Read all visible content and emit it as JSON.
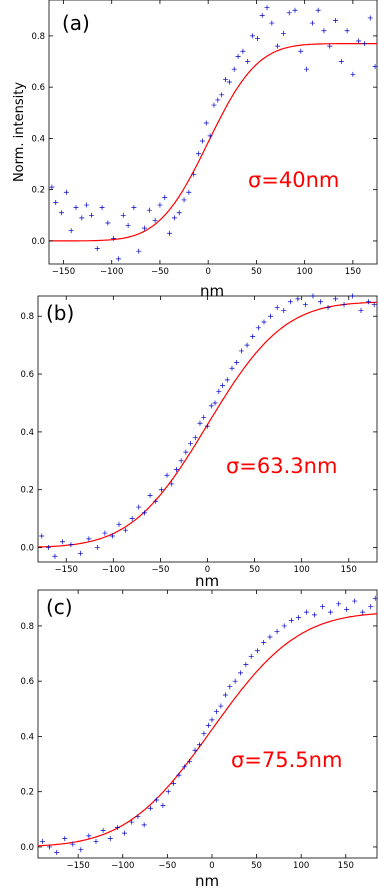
{
  "figure": {
    "curve_color": "#ff0000",
    "marker_color": "#0000cc",
    "marker": "+"
  },
  "chart_data": [
    {
      "type": "scatter",
      "panel_label": "(a)",
      "annotation": "σ=40nm",
      "xlabel": "nm",
      "ylabel": "Norm. intensity",
      "xlim": [
        -165,
        175
      ],
      "ylim": [
        -0.09,
        0.94
      ],
      "xticks": [
        -150,
        -100,
        -50,
        0,
        50,
        100,
        150
      ],
      "yticks": [
        0.0,
        0.2,
        0.4,
        0.6,
        0.8
      ],
      "ytick_labels": [
        "0.0",
        "0.2",
        "0.4",
        "0.6",
        "0.8"
      ],
      "fit": {
        "function": "erf",
        "sigma_nm": 40,
        "x0": 0,
        "baseline": 0.0,
        "plateau": 0.77
      },
      "points": [
        [
          -162,
          0.21
        ],
        [
          -158,
          0.15
        ],
        [
          -152,
          0.11
        ],
        [
          -147,
          0.19
        ],
        [
          -142,
          0.04
        ],
        [
          -137,
          0.13
        ],
        [
          -131,
          0.09
        ],
        [
          -126,
          0.14
        ],
        [
          -121,
          0.1
        ],
        [
          -115,
          -0.03
        ],
        [
          -110,
          0.13
        ],
        [
          -104,
          0.07
        ],
        [
          -98,
          0.01
        ],
        [
          -93,
          -0.07
        ],
        [
          -88,
          0.1
        ],
        [
          -83,
          0.06
        ],
        [
          -77,
          0.13
        ],
        [
          -72,
          -0.04
        ],
        [
          -66,
          0.05
        ],
        [
          -61,
          0.12
        ],
        [
          -55,
          0.08
        ],
        [
          -50,
          0.14
        ],
        [
          -45,
          0.17
        ],
        [
          -40,
          0.03
        ],
        [
          -35,
          0.09
        ],
        [
          -30,
          0.11
        ],
        [
          -25,
          0.16
        ],
        [
          -20,
          0.19
        ],
        [
          -15,
          0.26
        ],
        [
          -10,
          0.34
        ],
        [
          -6,
          0.39
        ],
        [
          -2,
          0.46
        ],
        [
          2,
          0.41
        ],
        [
          6,
          0.53
        ],
        [
          10,
          0.55
        ],
        [
          14,
          0.57
        ],
        [
          18,
          0.63
        ],
        [
          22,
          0.62
        ],
        [
          27,
          0.67
        ],
        [
          31,
          0.72
        ],
        [
          36,
          0.74
        ],
        [
          41,
          0.7
        ],
        [
          46,
          0.8
        ],
        [
          51,
          0.79
        ],
        [
          56,
          0.88
        ],
        [
          61,
          0.91
        ],
        [
          66,
          0.85
        ],
        [
          72,
          0.76
        ],
        [
          78,
          0.81
        ],
        [
          84,
          0.89
        ],
        [
          90,
          0.9
        ],
        [
          96,
          0.74
        ],
        [
          102,
          0.67
        ],
        [
          108,
          0.85
        ],
        [
          114,
          0.9
        ],
        [
          120,
          0.82
        ],
        [
          126,
          0.76
        ],
        [
          132,
          0.86
        ],
        [
          138,
          0.7
        ],
        [
          144,
          0.82
        ],
        [
          150,
          0.65
        ],
        [
          156,
          0.78
        ],
        [
          162,
          0.77
        ],
        [
          168,
          0.87
        ],
        [
          173,
          0.68
        ]
      ]
    },
    {
      "type": "scatter",
      "panel_label": "(b)",
      "annotation": "σ=63.3nm",
      "xlabel": "nm",
      "xlim": [
        -180,
        180
      ],
      "ylim": [
        -0.05,
        0.87
      ],
      "xticks": [
        -150,
        -100,
        -50,
        0,
        50,
        100,
        150
      ],
      "yticks": [
        0.0,
        0.2,
        0.4,
        0.6,
        0.8
      ],
      "ytick_labels": [
        "0.0",
        "0.2",
        "0.4",
        "0.6",
        "0.8"
      ],
      "fit": {
        "function": "erf",
        "sigma_nm": 63.3,
        "x0": 0,
        "baseline": 0.0,
        "plateau": 0.85
      },
      "points": [
        [
          -176,
          0.04
        ],
        [
          -169,
          0.0
        ],
        [
          -162,
          -0.03
        ],
        [
          -154,
          0.02
        ],
        [
          -145,
          0.01
        ],
        [
          -135,
          -0.02
        ],
        [
          -126,
          0.03
        ],
        [
          -117,
          0.0
        ],
        [
          -109,
          0.05
        ],
        [
          -101,
          0.04
        ],
        [
          -94,
          0.08
        ],
        [
          -87,
          0.06
        ],
        [
          -80,
          0.1
        ],
        [
          -73,
          0.14
        ],
        [
          -67,
          0.12
        ],
        [
          -61,
          0.18
        ],
        [
          -55,
          0.16
        ],
        [
          -49,
          0.2
        ],
        [
          -43,
          0.25
        ],
        [
          -38,
          0.22
        ],
        [
          -33,
          0.27
        ],
        [
          -28,
          0.3
        ],
        [
          -23,
          0.33
        ],
        [
          -18,
          0.36
        ],
        [
          -13,
          0.38
        ],
        [
          -8,
          0.43
        ],
        [
          -4,
          0.45
        ],
        [
          0,
          0.42
        ],
        [
          4,
          0.49
        ],
        [
          8,
          0.5
        ],
        [
          12,
          0.54
        ],
        [
          16,
          0.56
        ],
        [
          21,
          0.58
        ],
        [
          26,
          0.62
        ],
        [
          31,
          0.64
        ],
        [
          36,
          0.68
        ],
        [
          42,
          0.7
        ],
        [
          48,
          0.73
        ],
        [
          54,
          0.76
        ],
        [
          60,
          0.78
        ],
        [
          67,
          0.8
        ],
        [
          74,
          0.83
        ],
        [
          81,
          0.82
        ],
        [
          88,
          0.85
        ],
        [
          96,
          0.86
        ],
        [
          104,
          0.84
        ],
        [
          112,
          0.87
        ],
        [
          120,
          0.85
        ],
        [
          128,
          0.83
        ],
        [
          136,
          0.86
        ],
        [
          145,
          0.84
        ],
        [
          154,
          0.87
        ],
        [
          163,
          0.82
        ],
        [
          171,
          0.85
        ],
        [
          177,
          0.84
        ]
      ]
    },
    {
      "type": "scatter",
      "panel_label": "(c)",
      "annotation": "σ=75.5nm",
      "xlabel": "nm",
      "xlim": [
        -195,
        185
      ],
      "ylim": [
        -0.04,
        0.93
      ],
      "xticks": [
        -150,
        -100,
        -50,
        0,
        50,
        100,
        150
      ],
      "yticks": [
        0.0,
        0.2,
        0.4,
        0.6,
        0.8
      ],
      "ytick_labels": [
        "0.0",
        "0.2",
        "0.4",
        "0.6",
        "0.8"
      ],
      "fit": {
        "function": "erf",
        "sigma_nm": 75.5,
        "x0": 0,
        "baseline": 0.0,
        "plateau": 0.85
      },
      "points": [
        [
          -190,
          0.02
        ],
        [
          -182,
          0.0
        ],
        [
          -174,
          -0.02
        ],
        [
          -165,
          0.03
        ],
        [
          -156,
          0.01
        ],
        [
          -147,
          -0.01
        ],
        [
          -138,
          0.04
        ],
        [
          -130,
          0.02
        ],
        [
          -122,
          0.06
        ],
        [
          -114,
          0.03
        ],
        [
          -106,
          0.07
        ],
        [
          -98,
          0.05
        ],
        [
          -90,
          0.09
        ],
        [
          -83,
          0.11
        ],
        [
          -76,
          0.08
        ],
        [
          -69,
          0.14
        ],
        [
          -62,
          0.17
        ],
        [
          -55,
          0.15
        ],
        [
          -49,
          0.2
        ],
        [
          -43,
          0.23
        ],
        [
          -37,
          0.26
        ],
        [
          -31,
          0.29
        ],
        [
          -25,
          0.31
        ],
        [
          -19,
          0.35
        ],
        [
          -14,
          0.37
        ],
        [
          -9,
          0.41
        ],
        [
          -4,
          0.44
        ],
        [
          0,
          0.46
        ],
        [
          5,
          0.49
        ],
        [
          10,
          0.51
        ],
        [
          15,
          0.55
        ],
        [
          20,
          0.58
        ],
        [
          26,
          0.6
        ],
        [
          32,
          0.63
        ],
        [
          38,
          0.66
        ],
        [
          44,
          0.69
        ],
        [
          51,
          0.71
        ],
        [
          58,
          0.74
        ],
        [
          65,
          0.76
        ],
        [
          73,
          0.78
        ],
        [
          81,
          0.8
        ],
        [
          89,
          0.82
        ],
        [
          97,
          0.83
        ],
        [
          106,
          0.85
        ],
        [
          115,
          0.84
        ],
        [
          124,
          0.87
        ],
        [
          133,
          0.85
        ],
        [
          142,
          0.88
        ],
        [
          151,
          0.86
        ],
        [
          160,
          0.89
        ],
        [
          169,
          0.85
        ],
        [
          178,
          0.87
        ],
        [
          183,
          0.9
        ]
      ]
    }
  ]
}
